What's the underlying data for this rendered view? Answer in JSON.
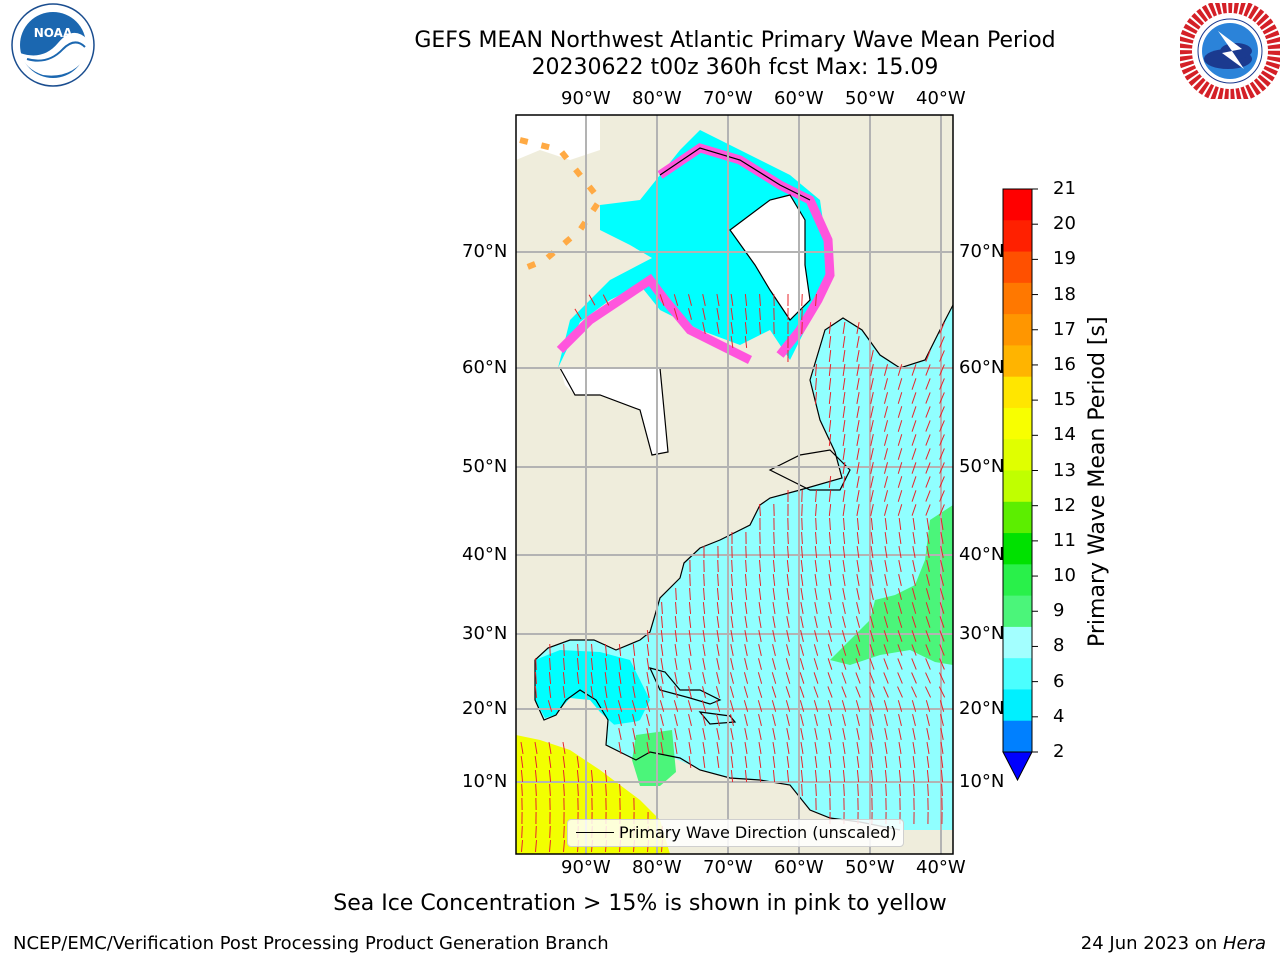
{
  "header": {
    "title_line1": "GEFS MEAN Northwest Atlantic Primary Wave Mean Period",
    "title_line2": "20230622 t00z 360h fcst   Max: 15.09"
  },
  "logos": {
    "noaa_text": "NOAA",
    "noaa_ring_text": "NATIONAL OCEANIC AND ATMOSPHERIC ADMINISTRATION · U.S. DEPARTMENT OF COMMERCE",
    "nws_ring_text": "NATIONAL WEATHER SERVICE"
  },
  "map": {
    "lon_labels": [
      "90°W",
      "80°W",
      "70°W",
      "60°W",
      "50°W",
      "40°W"
    ],
    "lat_labels": [
      "70°N",
      "60°N",
      "50°N",
      "40°N",
      "30°N",
      "20°N",
      "10°N"
    ],
    "colors": {
      "land": "#efeddc",
      "ice_mask": "#ffffff",
      "grid": "#b3b3b3",
      "arrow": "#e8242b",
      "ocean_default": "#90ffff",
      "ocean_low": "#00ffff",
      "ocean_mid": "#4bf57a",
      "ocean_high": "#f2ff00",
      "ice_pink": "#ff55dd",
      "ice_orange": "#ffaa44"
    },
    "legend_label": "Primary Wave Direction (unscaled)"
  },
  "colorbar": {
    "label": "Primary Wave Mean Period [s]",
    "ticks": [
      "21",
      "20",
      "19",
      "18",
      "17",
      "16",
      "15",
      "14",
      "13",
      "12",
      "11",
      "10",
      "9",
      "8",
      "6",
      "4",
      "2"
    ],
    "colors": [
      "#ff0000",
      "#ff2000",
      "#ff5000",
      "#ff7800",
      "#ff9600",
      "#ffb400",
      "#ffe600",
      "#f8ff00",
      "#e0ff00",
      "#c0ff00",
      "#5cee00",
      "#00e100",
      "#29f04a",
      "#4bf57a",
      "#a3ffff",
      "#4bffff",
      "#00f0ff",
      "#0080ff"
    ],
    "extend_color": "#0000ff"
  },
  "caption": "Sea Ice Concentration > 15% is shown in pink to yellow",
  "footer": {
    "left": "NCEP/EMC/Verification Post Processing Product Generation Branch",
    "right_prefix": "24 Jun 2023 on ",
    "right_host": "Hera"
  }
}
